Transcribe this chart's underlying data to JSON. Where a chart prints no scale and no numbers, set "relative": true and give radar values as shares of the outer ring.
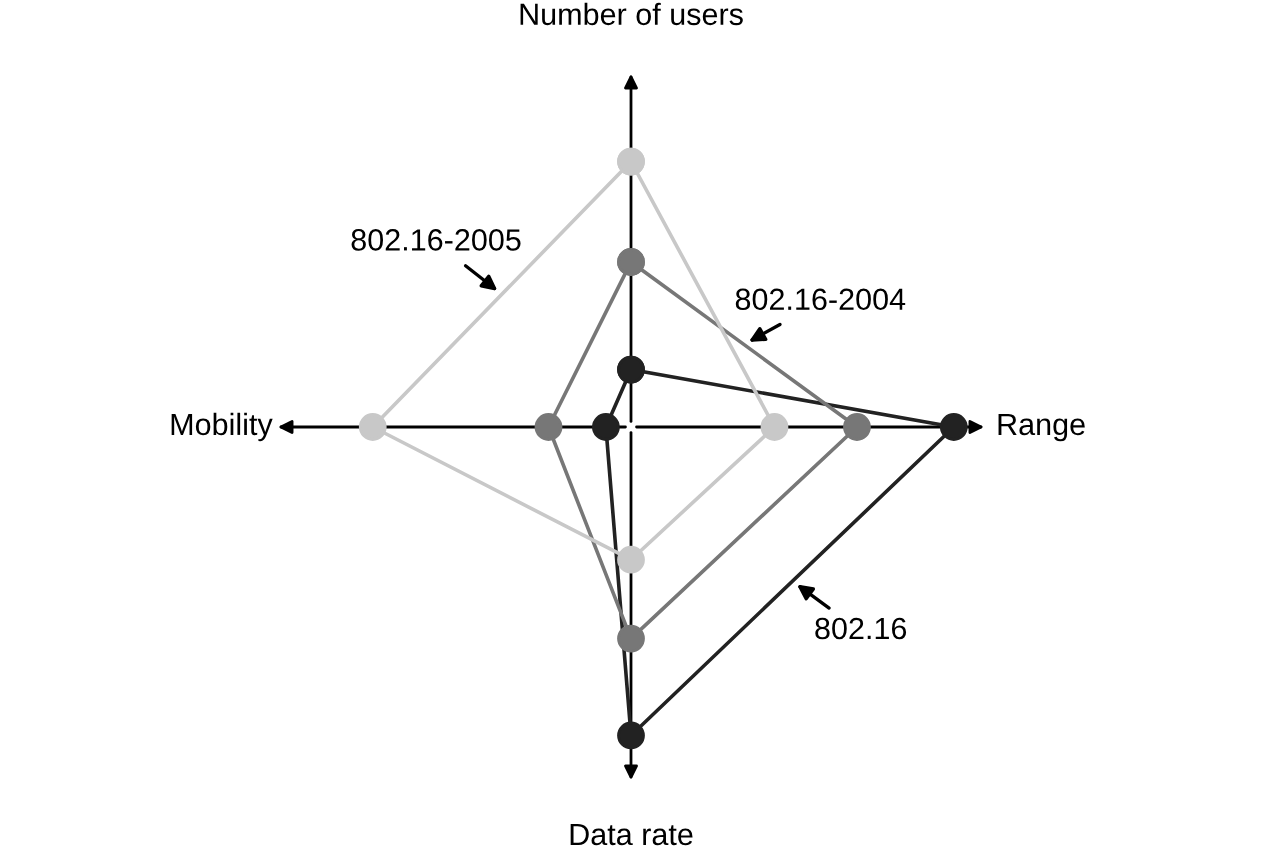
{
  "chart_data": {
    "type": "radar",
    "relative": true,
    "marker": "circle",
    "categories": [
      "Number of users",
      "Range",
      "Data rate",
      "Mobility"
    ],
    "series": [
      {
        "name": "802.16",
        "color": "#222222",
        "values": [
          0.16,
          0.9,
          0.86,
          0.07
        ]
      },
      {
        "name": "802.16-2004",
        "color": "#777777",
        "values": [
          0.46,
          0.63,
          0.59,
          0.23
        ]
      },
      {
        "name": "802.16-2005",
        "color": "#c8c8c8",
        "values": [
          0.74,
          0.4,
          0.37,
          0.72
        ]
      }
    ]
  }
}
